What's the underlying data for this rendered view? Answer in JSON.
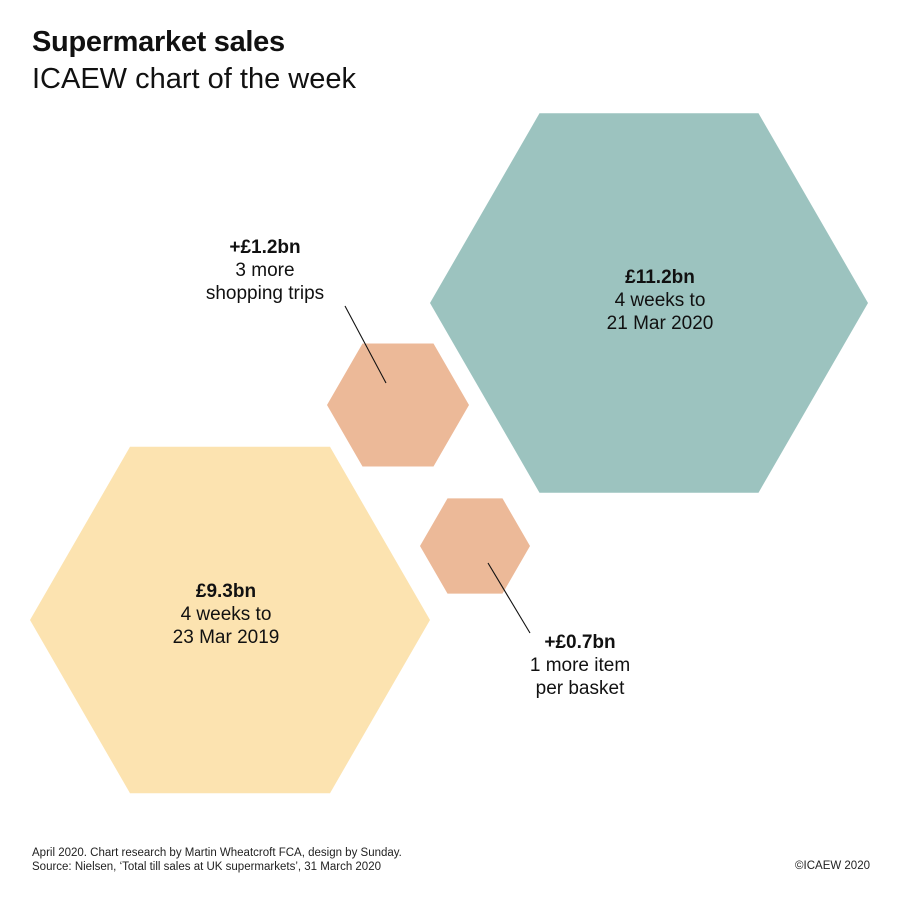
{
  "header": {
    "title": "Supermarket sales",
    "subtitle": "ICAEW chart of the week"
  },
  "chart_data": {
    "type": "hexagon-bubble",
    "unit": "£bn",
    "items": [
      {
        "key": "sales_2019",
        "value": 9.3,
        "value_label": "£9.3bn",
        "lines": [
          "4 weeks to",
          "23 Mar 2019"
        ],
        "color": "#FCE3B0"
      },
      {
        "key": "sales_2020",
        "value": 11.2,
        "value_label": "£11.2bn",
        "lines": [
          "4 weeks to",
          "21 Mar 2020"
        ],
        "color": "#9CC3BF"
      },
      {
        "key": "more_trips",
        "value": 1.2,
        "value_label": "+£1.2bn",
        "lines": [
          "3 more",
          "shopping trips"
        ],
        "color": "#ECB998"
      },
      {
        "key": "more_items",
        "value": 0.7,
        "value_label": "+£0.7bn",
        "lines": [
          "1 more item",
          "per basket"
        ],
        "color": "#ECB998"
      }
    ]
  },
  "footer": {
    "line1": "April 2020. Chart research by Martin Wheatcroft FCA, design by Sunday.",
    "line2": "Source:  Nielsen, ‘Total till sales at UK supermarkets’, 31 March 2020",
    "copyright": "©ICAEW 2020"
  }
}
